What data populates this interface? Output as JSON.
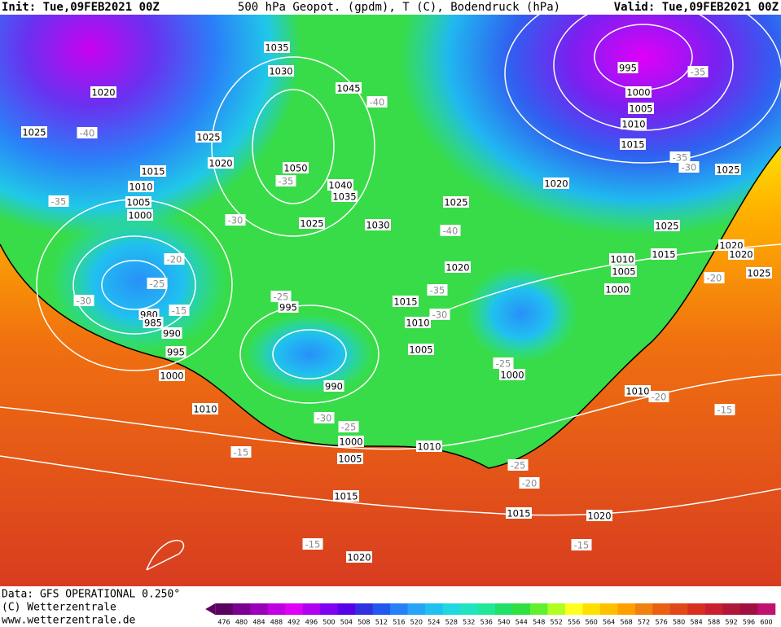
{
  "header": {
    "init": "Init: Tue,09FEB2021 00Z",
    "title": "500 hPa Geopot. (gpdm), T (C), Bodendruck (hPa)",
    "valid": "Valid: Tue,09FEB2021 00Z"
  },
  "footer": {
    "data": "Data: GFS OPERATIONAL 0.250°",
    "copyright": "(C) Wetterzentrale",
    "url": "www.wetterzentrale.de"
  },
  "isobar_labels": [
    "1035",
    "1030",
    "1045",
    "1020",
    "1025",
    "1025",
    "1020",
    "1015",
    "1010",
    "1005",
    "1000",
    "1050",
    "1040",
    "1035",
    "1025",
    "1030",
    "1025",
    "1020",
    "995",
    "1000",
    "1005",
    "1010",
    "1015",
    "1025",
    "1025",
    "1015",
    "1020",
    "1020",
    "1025",
    "1010",
    "1005",
    "1000",
    "1020",
    "1015",
    "1010",
    "1005",
    "1000",
    "995",
    "980",
    "985",
    "990",
    "995",
    "1000",
    "1010",
    "990",
    "1000",
    "1005",
    "1010",
    "1015",
    "1015",
    "1020",
    "1020",
    "1010"
  ],
  "temperature_labels": [
    "-35",
    "-40",
    "-40",
    "-35",
    "-35",
    "-30",
    "-20",
    "-25",
    "-30",
    "-15",
    "-25",
    "-35",
    "-30",
    "-40",
    "-35",
    "-30",
    "-20",
    "-25",
    "-20",
    "-15",
    "-30",
    "-25",
    "-25",
    "-20",
    "-15",
    "-15",
    "-15"
  ],
  "colorbar": {
    "labels": [
      "476",
      "480",
      "484",
      "488",
      "492",
      "496",
      "500",
      "504",
      "508",
      "512",
      "516",
      "520",
      "524",
      "528",
      "532",
      "536",
      "540",
      "544",
      "548",
      "552",
      "556",
      "560",
      "564",
      "568",
      "572",
      "576",
      "580",
      "584",
      "588",
      "592",
      "596",
      "600"
    ],
    "colors": [
      "#5a0060",
      "#7a0090",
      "#9a00b8",
      "#c000e0",
      "#e000f8",
      "#b000f0",
      "#8000f0",
      "#5800e8",
      "#3030e0",
      "#2058f0",
      "#2880f8",
      "#28a4f8",
      "#20c0f0",
      "#20d8e0",
      "#20e4c0",
      "#20e898",
      "#20e068",
      "#30e040",
      "#60f030",
      "#b0ff20",
      "#ffff20",
      "#ffe000",
      "#ffc000",
      "#ffa000",
      "#f08010",
      "#e86010",
      "#e04818",
      "#d83020",
      "#c82030",
      "#b01838",
      "#a01040",
      "#c01070"
    ]
  }
}
